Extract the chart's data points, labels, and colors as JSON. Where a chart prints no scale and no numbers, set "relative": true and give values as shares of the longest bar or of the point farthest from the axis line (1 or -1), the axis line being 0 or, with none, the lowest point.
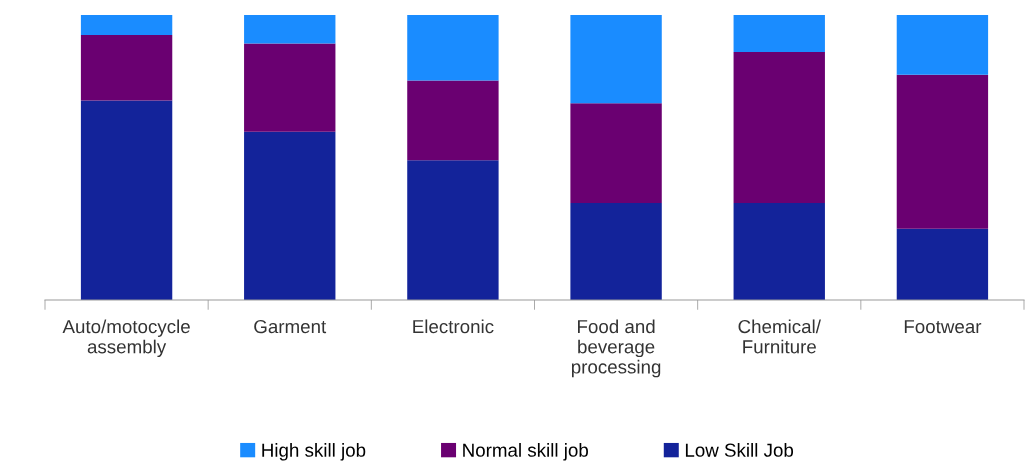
{
  "chart_data": {
    "type": "bar",
    "stacked": true,
    "relative": true,
    "legend": "bottom",
    "grid": false,
    "categories": [
      "Auto/motocycle\nassembly",
      "Garment",
      "Electronic",
      "Food and\nbeverage\nprocessing",
      "Chemical/\nFurniture",
      "Footwear"
    ],
    "series": [
      {
        "name": "Low Skill Job",
        "color": "#13239a",
        "values": [
          0.7,
          0.59,
          0.49,
          0.34,
          0.34,
          0.25
        ]
      },
      {
        "name": "Normal skill job",
        "color": "#6a0071",
        "values": [
          0.23,
          0.31,
          0.28,
          0.35,
          0.53,
          0.54
        ]
      },
      {
        "name": "High skill job",
        "color": "#1a8cff",
        "values": [
          0.07,
          0.1,
          0.23,
          0.31,
          0.13,
          0.21
        ]
      }
    ]
  }
}
